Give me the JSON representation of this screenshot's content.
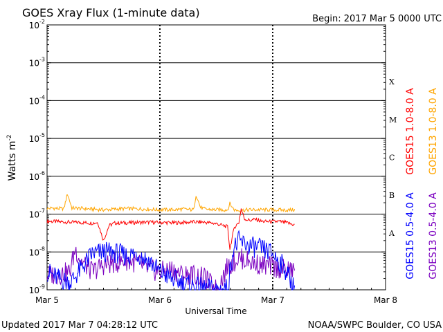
{
  "chart_data": {
    "type": "line",
    "title": "GOES Xray Flux (1-minute data)",
    "begin_label": "Begin:  2017 Mar 5 0000 UTC",
    "xlabel": "Universal Time",
    "ylabel": "Watts m",
    "ylabel_exp": "-2",
    "y_scale": "log",
    "ylim": [
      1e-09,
      0.01
    ],
    "y_ticks": [
      {
        "base": "10",
        "exp": "-9",
        "value": 1e-09
      },
      {
        "base": "10",
        "exp": "-8",
        "value": 1e-08
      },
      {
        "base": "10",
        "exp": "-7",
        "value": 1e-07
      },
      {
        "base": "10",
        "exp": "-6",
        "value": 1e-06
      },
      {
        "base": "10",
        "exp": "-5",
        "value": 1e-05
      },
      {
        "base": "10",
        "exp": "-4",
        "value": 0.0001
      },
      {
        "base": "10",
        "exp": "-3",
        "value": 0.001
      },
      {
        "base": "10",
        "exp": "-2",
        "value": 0.01
      }
    ],
    "x_range_days": [
      "Mar 5",
      "Mar 8"
    ],
    "x_ticks": [
      "Mar 5",
      "Mar 6",
      "Mar 7",
      "Mar 8"
    ],
    "flare_classes": [
      {
        "label": "A",
        "value": 1e-08
      },
      {
        "label": "B",
        "value": 1e-07
      },
      {
        "label": "C",
        "value": 1e-06
      },
      {
        "label": "M",
        "value": 1e-05
      },
      {
        "label": "X",
        "value": 0.0001
      }
    ],
    "grid": "horizontal at each decade from 1e-8 to 1e-3; dashed vertical at each day",
    "legend_placement": "right, vertical",
    "series": [
      {
        "name": "GOES15 1.0-8.0 A",
        "color": "#ff0000",
        "points": [
          [
            0.0,
            6.5e-08
          ],
          [
            0.1,
            6.3e-08
          ],
          [
            0.2,
            6.1e-08
          ],
          [
            0.3,
            6e-08
          ],
          [
            0.4,
            5.8e-08
          ],
          [
            0.45,
            6e-08
          ],
          [
            0.5,
            2e-08
          ],
          [
            0.55,
            5e-08
          ],
          [
            0.6,
            5.8e-08
          ],
          [
            0.7,
            5.9e-08
          ],
          [
            0.8,
            6e-08
          ],
          [
            0.9,
            6.1e-08
          ],
          [
            1.0,
            6e-08
          ],
          [
            1.1,
            5.9e-08
          ],
          [
            1.2,
            6e-08
          ],
          [
            1.3,
            6.2e-08
          ],
          [
            1.4,
            6.1e-08
          ],
          [
            1.5,
            5.6e-08
          ],
          [
            1.6,
            4.6e-08
          ],
          [
            1.62,
            1.2e-08
          ],
          [
            1.66,
            4.5e-08
          ],
          [
            1.7,
            6e-08
          ],
          [
            1.72,
            1.4e-07
          ],
          [
            1.75,
            7.5e-08
          ],
          [
            1.8,
            6.8e-08
          ],
          [
            1.85,
            7.3e-08
          ],
          [
            1.9,
            6.4e-08
          ],
          [
            2.0,
            6.3e-08
          ],
          [
            2.05,
            6.4e-08
          ],
          [
            2.1,
            6.1e-08
          ],
          [
            2.15,
            5.6e-08
          ],
          [
            2.2,
            5.1e-08
          ]
        ]
      },
      {
        "name": "GOES13 1.0-8.0 A",
        "color": "#ffa500",
        "points": [
          [
            0.0,
            1.4e-07
          ],
          [
            0.05,
            1.45e-07
          ],
          [
            0.1,
            1.4e-07
          ],
          [
            0.15,
            1.4e-07
          ],
          [
            0.18,
            3.5e-07
          ],
          [
            0.22,
            1.45e-07
          ],
          [
            0.3,
            1.42e-07
          ],
          [
            0.4,
            1.35e-07
          ],
          [
            0.5,
            1.3e-07
          ],
          [
            0.6,
            1.35e-07
          ],
          [
            0.7,
            1.4e-07
          ],
          [
            0.8,
            1.38e-07
          ],
          [
            0.9,
            1.35e-07
          ],
          [
            1.0,
            1.3e-07
          ],
          [
            1.1,
            1.3e-07
          ],
          [
            1.2,
            1.35e-07
          ],
          [
            1.3,
            1.3e-07
          ],
          [
            1.32,
            3.3e-07
          ],
          [
            1.36,
            1.5e-07
          ],
          [
            1.4,
            1.35e-07
          ],
          [
            1.5,
            1.3e-07
          ],
          [
            1.6,
            1.3e-07
          ],
          [
            1.62,
            1.9e-07
          ],
          [
            1.66,
            1.3e-07
          ],
          [
            1.7,
            1.25e-07
          ],
          [
            1.8,
            1.3e-07
          ],
          [
            1.9,
            1.3e-07
          ],
          [
            2.0,
            1.3e-07
          ],
          [
            2.1,
            1.28e-07
          ],
          [
            2.2,
            1.3e-07
          ]
        ]
      },
      {
        "name": "GOES15 0.5-4.0 A",
        "color": "#0000ff",
        "points": [
          [
            0.0,
            3e-09
          ],
          [
            0.1,
            2e-09
          ],
          [
            0.2,
            1.5e-09
          ],
          [
            0.3,
            3.5e-09
          ],
          [
            0.4,
            9e-09
          ],
          [
            0.5,
            1e-08
          ],
          [
            0.6,
            9.5e-09
          ],
          [
            0.7,
            8e-09
          ],
          [
            0.8,
            9e-09
          ],
          [
            0.9,
            6e-09
          ],
          [
            1.0,
            3e-09
          ],
          [
            1.1,
            2e-09
          ],
          [
            1.2,
            1.5e-09
          ],
          [
            1.3,
            1.2e-09
          ],
          [
            1.4,
            1.1e-09
          ],
          [
            1.5,
            1e-09
          ],
          [
            1.6,
            1.1e-09
          ],
          [
            1.65,
            1.2e-08
          ],
          [
            1.7,
            1.9e-08
          ],
          [
            1.8,
            1.4e-08
          ],
          [
            1.9,
            1.2e-08
          ],
          [
            2.0,
            9e-09
          ],
          [
            2.1,
            4e-09
          ],
          [
            2.2,
            1e-09
          ]
        ]
      },
      {
        "name": "GOES13 0.5-4.0 A",
        "color": "#7b00c0",
        "points": [
          [
            0.0,
            2.5e-09
          ],
          [
            0.1,
            2.5e-09
          ],
          [
            0.2,
            3e-09
          ],
          [
            0.25,
            1.2e-08
          ],
          [
            0.3,
            6e-09
          ],
          [
            0.4,
            3e-09
          ],
          [
            0.5,
            4.5e-09
          ],
          [
            0.6,
            5e-09
          ],
          [
            0.7,
            6e-09
          ],
          [
            0.8,
            5e-09
          ],
          [
            0.9,
            3.5e-09
          ],
          [
            1.0,
            3e-09
          ],
          [
            1.1,
            3.5e-09
          ],
          [
            1.2,
            2.5e-09
          ],
          [
            1.3,
            2.5e-09
          ],
          [
            1.4,
            2e-09
          ],
          [
            1.5,
            1e-09
          ],
          [
            1.6,
            4e-09
          ],
          [
            1.7,
            7e-09
          ],
          [
            1.8,
            5.5e-09
          ],
          [
            1.9,
            4.5e-09
          ],
          [
            2.0,
            4e-09
          ],
          [
            2.1,
            3.5e-09
          ],
          [
            2.2,
            3e-09
          ]
        ]
      }
    ]
  },
  "footer": {
    "updated": "Updated 2017 Mar  7 04:28:12 UTC",
    "credit": "NOAA/SWPC Boulder, CO USA"
  }
}
